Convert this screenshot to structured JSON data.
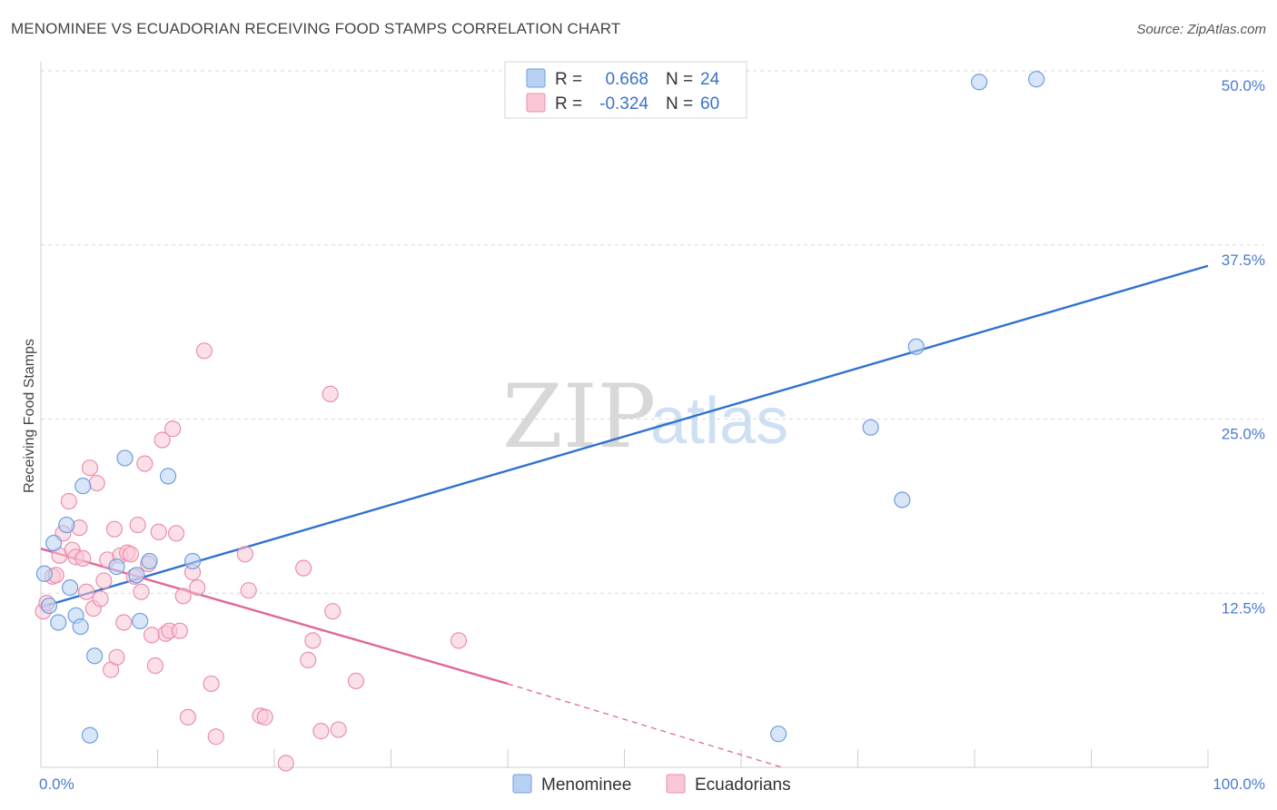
{
  "header": {
    "title": "MENOMINEE VS ECUADORIAN RECEIVING FOOD STAMPS CORRELATION CHART",
    "source": "Source: ZipAtlas.com"
  },
  "legend_top": {
    "r_label": "R =",
    "n_label": "N =",
    "series": [
      {
        "r": "0.668",
        "n": "24"
      },
      {
        "r": "-0.324",
        "n": "60"
      }
    ]
  },
  "watermark": {
    "part1": "ZIP",
    "part2": "atlas"
  },
  "colors": {
    "menominee_fill": "#b8d1f3",
    "menominee_stroke": "#6f9ee0",
    "menominee_line": "#2f72d1",
    "ecuadorian_fill": "#f9c7d6",
    "ecuadorian_stroke": "#eb8fae",
    "ecuadorian_line": "#e0679a",
    "grid": "#d9d9d9",
    "tick_label": "#4a7bd0"
  },
  "chart_data": {
    "type": "scatter",
    "title": "MENOMINEE VS ECUADORIAN RECEIVING FOOD STAMPS CORRELATION CHART",
    "xlabel": "",
    "ylabel": "Receiving Food Stamps",
    "xlim": [
      0,
      100
    ],
    "ylim": [
      0,
      50
    ],
    "x_tick_labels": [
      "0.0%",
      "100.0%"
    ],
    "y_ticks": [
      {
        "value": 12.5,
        "label": "12.5%"
      },
      {
        "value": 25.0,
        "label": "25.0%"
      },
      {
        "value": 37.5,
        "label": "37.5%"
      },
      {
        "value": 50.0,
        "label": "50.0%"
      }
    ],
    "legend": [
      "Menominee",
      "Ecuadorians"
    ],
    "series": [
      {
        "name": "Menominee",
        "r": 0.668,
        "n": 24,
        "trend": {
          "x": [
            0,
            100
          ],
          "y": [
            11.5,
            36.0
          ]
        },
        "points": [
          [
            0.3,
            13.9
          ],
          [
            0.7,
            11.6
          ],
          [
            1.1,
            16.1
          ],
          [
            1.5,
            10.4
          ],
          [
            2.2,
            17.4
          ],
          [
            2.5,
            12.9
          ],
          [
            3.0,
            10.9
          ],
          [
            3.4,
            10.1
          ],
          [
            3.6,
            20.2
          ],
          [
            4.2,
            2.3
          ],
          [
            4.6,
            8.0
          ],
          [
            6.5,
            14.4
          ],
          [
            7.2,
            22.2
          ],
          [
            8.2,
            13.8
          ],
          [
            8.5,
            10.5
          ],
          [
            9.3,
            14.8
          ],
          [
            10.9,
            20.9
          ],
          [
            13.0,
            14.8
          ],
          [
            63.2,
            2.4
          ],
          [
            71.1,
            24.4
          ],
          [
            73.8,
            19.2
          ],
          [
            75.0,
            30.2
          ],
          [
            80.4,
            49.2
          ],
          [
            85.3,
            49.4
          ]
        ]
      },
      {
        "name": "Ecuadorians",
        "r": -0.324,
        "n": 60,
        "trend": {
          "x": [
            0,
            40
          ],
          "y": [
            15.7,
            6.0
          ],
          "dashed_extension": {
            "x": [
              40,
              63.5
            ],
            "y": [
              6.0,
              0.0
            ]
          }
        },
        "points": [
          [
            0.2,
            11.2
          ],
          [
            0.5,
            11.8
          ],
          [
            1.0,
            13.7
          ],
          [
            1.3,
            13.8
          ],
          [
            1.6,
            15.2
          ],
          [
            1.9,
            16.8
          ],
          [
            2.4,
            19.1
          ],
          [
            2.7,
            15.6
          ],
          [
            3.0,
            15.1
          ],
          [
            3.3,
            17.2
          ],
          [
            3.6,
            15.0
          ],
          [
            3.9,
            12.6
          ],
          [
            4.2,
            21.5
          ],
          [
            4.5,
            11.4
          ],
          [
            4.8,
            20.4
          ],
          [
            5.1,
            12.1
          ],
          [
            5.4,
            13.4
          ],
          [
            5.7,
            14.9
          ],
          [
            6.0,
            7.0
          ],
          [
            6.3,
            17.1
          ],
          [
            6.5,
            7.9
          ],
          [
            6.8,
            15.2
          ],
          [
            7.1,
            10.4
          ],
          [
            7.4,
            15.4
          ],
          [
            7.7,
            15.3
          ],
          [
            8.0,
            13.7
          ],
          [
            8.3,
            17.4
          ],
          [
            8.6,
            12.6
          ],
          [
            8.9,
            21.8
          ],
          [
            9.2,
            14.6
          ],
          [
            9.5,
            9.5
          ],
          [
            9.8,
            7.3
          ],
          [
            10.1,
            16.9
          ],
          [
            10.4,
            23.5
          ],
          [
            10.7,
            9.6
          ],
          [
            11.0,
            9.8
          ],
          [
            11.3,
            24.3
          ],
          [
            11.6,
            16.8
          ],
          [
            11.9,
            9.8
          ],
          [
            12.2,
            12.3
          ],
          [
            12.6,
            3.6
          ],
          [
            13.0,
            14.0
          ],
          [
            13.4,
            12.9
          ],
          [
            14.0,
            29.9
          ],
          [
            14.6,
            6.0
          ],
          [
            15.0,
            2.2
          ],
          [
            17.5,
            15.3
          ],
          [
            17.8,
            12.7
          ],
          [
            18.8,
            3.7
          ],
          [
            19.2,
            3.6
          ],
          [
            21.0,
            0.3
          ],
          [
            22.5,
            14.3
          ],
          [
            22.9,
            7.7
          ],
          [
            23.3,
            9.1
          ],
          [
            24.0,
            2.6
          ],
          [
            24.8,
            26.8
          ],
          [
            25.0,
            11.2
          ],
          [
            25.5,
            2.7
          ],
          [
            27.0,
            6.2
          ],
          [
            35.8,
            9.1
          ]
        ]
      }
    ]
  }
}
